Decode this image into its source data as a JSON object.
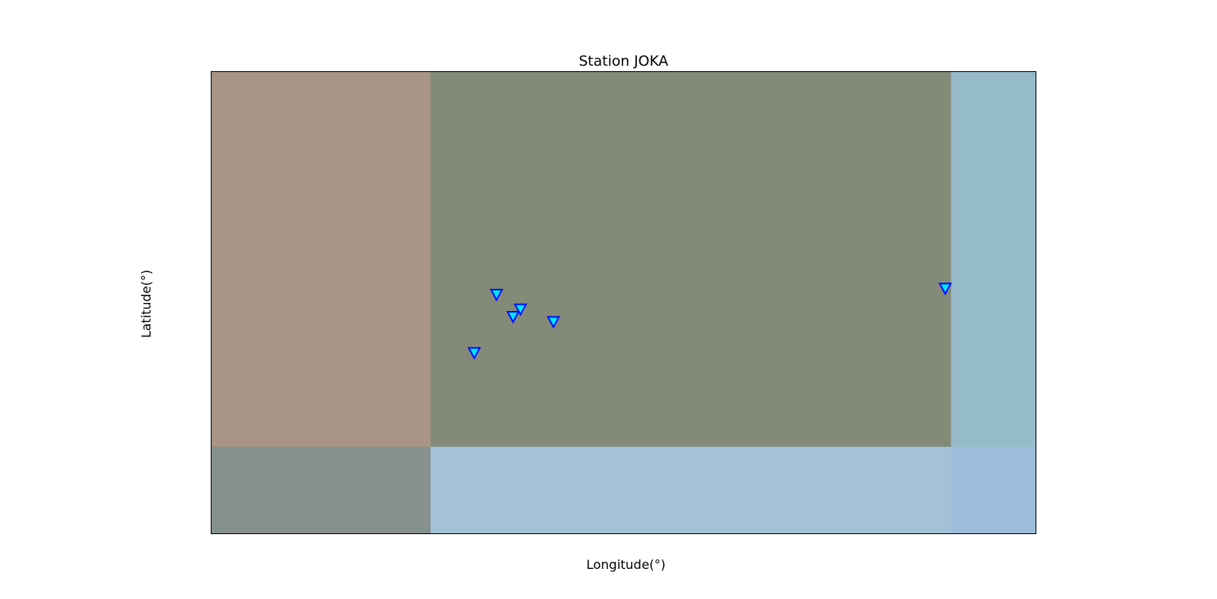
{
  "figure": {
    "title": "Station JOKA",
    "xlabel": "Longitude(°)",
    "ylabel": "Latitude(°)"
  },
  "map": {
    "tiles": [
      {
        "name": "tile-west-land",
        "color": "#a89585",
        "col": 0,
        "row": 0
      },
      {
        "name": "tile-central-land",
        "color": "#848a78",
        "col": 1,
        "row": 0
      },
      {
        "name": "tile-east-water",
        "color": "#96bbca",
        "col": 2,
        "row": 0
      },
      {
        "name": "tile-southwest",
        "color": "#85908f",
        "col": 0,
        "row": 1
      },
      {
        "name": "tile-south-water",
        "color": "#a4c2d7",
        "col": 1,
        "row": 1
      },
      {
        "name": "tile-southeast-water",
        "color": "#9cbedb",
        "col": 2,
        "row": 1
      }
    ],
    "column_fractions": [
      0.266,
      0.631,
      0.103
    ],
    "row_fractions": [
      0.812,
      0.188
    ],
    "stations": [
      {
        "u": 0.346,
        "v": 0.482
      },
      {
        "u": 0.375,
        "v": 0.514
      },
      {
        "u": 0.366,
        "v": 0.53
      },
      {
        "u": 0.415,
        "v": 0.541
      },
      {
        "u": 0.319,
        "v": 0.608
      },
      {
        "u": 0.89,
        "v": 0.469
      }
    ],
    "marker_fill": "#00e5ff",
    "marker_stroke": "#0010ff",
    "frame_color": "#000000"
  }
}
